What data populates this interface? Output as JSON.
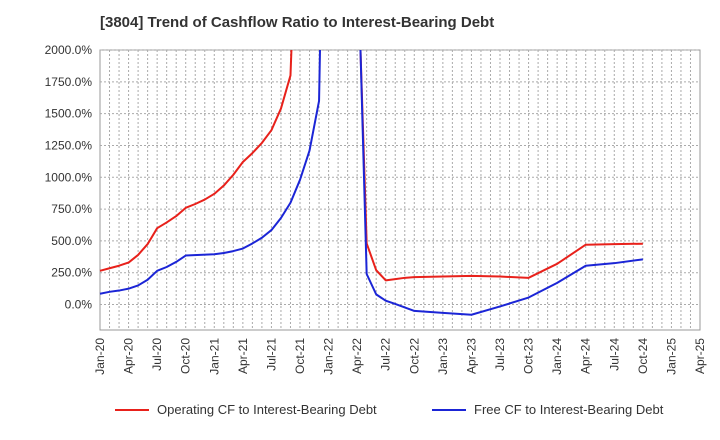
{
  "chart_data": {
    "type": "line",
    "title": "[3804]  Trend of Cashflow Ratio to Interest-Bearing Debt",
    "xlabel": "",
    "ylabel": "",
    "ylim": [
      -200,
      2000
    ],
    "y_ticks": [
      "2000.0%",
      "1750.0%",
      "1500.0%",
      "1250.0%",
      "1000.0%",
      "750.0%",
      "500.0%",
      "250.0%",
      "0.0%"
    ],
    "y_tick_values": [
      2000,
      1750,
      1500,
      1250,
      1000,
      750,
      500,
      250,
      0
    ],
    "x_ticks": [
      "Jan-20",
      "Apr-20",
      "Jul-20",
      "Oct-20",
      "Jan-21",
      "Apr-21",
      "Jul-21",
      "Oct-21",
      "Jan-22",
      "Apr-22",
      "Jul-22",
      "Oct-22",
      "Jan-23",
      "Apr-23",
      "Jul-23",
      "Oct-23",
      "Jan-24",
      "Apr-24",
      "Jul-24",
      "Oct-24",
      "Jan-25",
      "Apr-25"
    ],
    "grid": true,
    "legend_position": "bottom",
    "series": [
      {
        "name": "Operating CF to Interest-Bearing Debt",
        "color": "#e8211b",
        "points": [
          [
            "Jan-20",
            265
          ],
          [
            "Feb-20",
            285
          ],
          [
            "Mar-20",
            305
          ],
          [
            "Apr-20",
            330
          ],
          [
            "May-20",
            390
          ],
          [
            "Jun-20",
            475
          ],
          [
            "Jul-20",
            600
          ],
          [
            "Aug-20",
            645
          ],
          [
            "Sep-20",
            695
          ],
          [
            "Oct-20",
            760
          ],
          [
            "Nov-20",
            790
          ],
          [
            "Dec-20",
            825
          ],
          [
            "Jan-21",
            870
          ],
          [
            "Feb-21",
            935
          ],
          [
            "Mar-21",
            1020
          ],
          [
            "Apr-21",
            1120
          ],
          [
            "May-21",
            1190
          ],
          [
            "Jun-21",
            1270
          ],
          [
            "Jul-21",
            1370
          ],
          [
            "Aug-21",
            1540
          ],
          [
            "Sep-21",
            1800
          ],
          [
            "Sep-21b",
            2000
          ],
          [
            "Apr-22b",
            2000
          ],
          [
            "May-22",
            480
          ],
          [
            "Jun-22",
            270
          ],
          [
            "Jul-22",
            190
          ],
          [
            "Aug-22",
            200
          ],
          [
            "Sep-22",
            210
          ],
          [
            "Oct-22",
            215
          ],
          [
            "Jan-23",
            220
          ],
          [
            "Apr-23",
            225
          ],
          [
            "Jul-23",
            220
          ],
          [
            "Oct-23",
            210
          ],
          [
            "Jan-24",
            320
          ],
          [
            "Apr-24",
            470
          ],
          [
            "Jul-24",
            475
          ],
          [
            "Oct-24",
            478
          ]
        ]
      },
      {
        "name": "Free CF to Interest-Bearing Debt",
        "color": "#1b25d6",
        "points": [
          [
            "Jan-20",
            85
          ],
          [
            "Feb-20",
            100
          ],
          [
            "Mar-20",
            110
          ],
          [
            "Apr-20",
            125
          ],
          [
            "May-20",
            150
          ],
          [
            "Jun-20",
            195
          ],
          [
            "Jul-20",
            265
          ],
          [
            "Aug-20",
            295
          ],
          [
            "Sep-20",
            335
          ],
          [
            "Oct-20",
            385
          ],
          [
            "Jan-21",
            395
          ],
          [
            "Feb-21",
            405
          ],
          [
            "Mar-21",
            420
          ],
          [
            "Apr-21",
            440
          ],
          [
            "May-21",
            480
          ],
          [
            "Jun-21",
            525
          ],
          [
            "Jul-21",
            585
          ],
          [
            "Aug-21",
            680
          ],
          [
            "Sep-21",
            800
          ],
          [
            "Oct-21",
            980
          ],
          [
            "Nov-21",
            1210
          ],
          [
            "Dec-21",
            1600
          ],
          [
            "Dec-21b",
            2000
          ],
          [
            "Apr-22b",
            2000
          ],
          [
            "May-22",
            240
          ],
          [
            "Jun-22",
            80
          ],
          [
            "Jul-22",
            30
          ],
          [
            "Aug-22",
            5
          ],
          [
            "Oct-22",
            -50
          ],
          [
            "Jan-23",
            -65
          ],
          [
            "Apr-23",
            -80
          ],
          [
            "Jul-23",
            -15
          ],
          [
            "Oct-23",
            55
          ],
          [
            "Jan-24",
            170
          ],
          [
            "Apr-24",
            305
          ],
          [
            "Jul-24",
            325
          ],
          [
            "Oct-24",
            355
          ]
        ]
      }
    ]
  }
}
